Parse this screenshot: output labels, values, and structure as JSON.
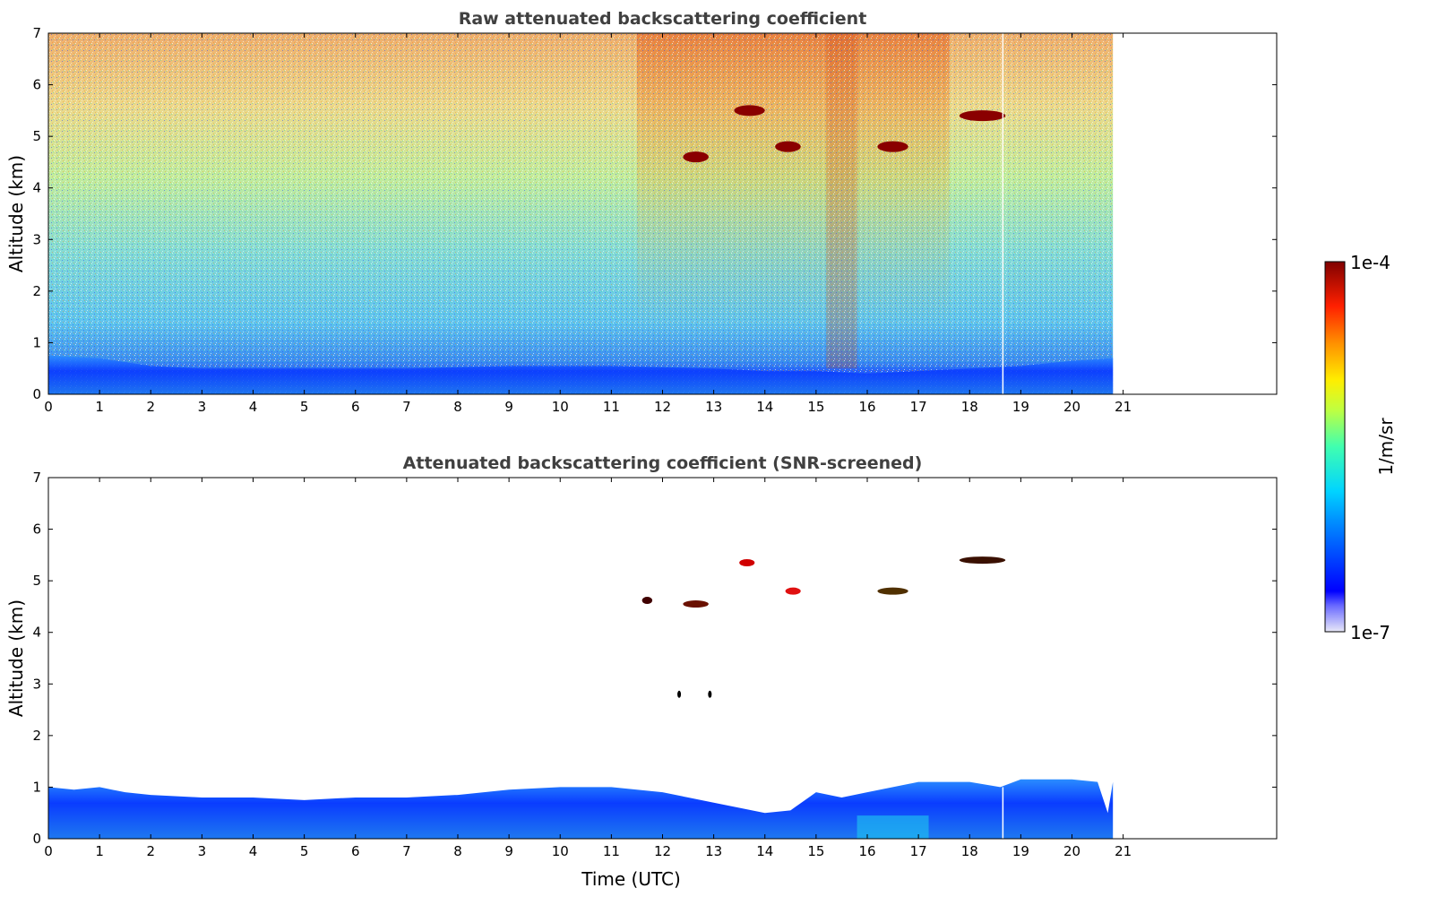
{
  "chart_data": [
    {
      "type": "heatmap",
      "title": "Raw attenuated backscattering coefficient",
      "xlabel": "",
      "ylabel": "Altitude (km)",
      "xlim": [
        0,
        24
      ],
      "ylim": [
        0,
        7
      ],
      "x_ticks": [
        0,
        1,
        2,
        3,
        4,
        5,
        6,
        7,
        8,
        9,
        10,
        11,
        12,
        13,
        14,
        15,
        16,
        17,
        18,
        19,
        20,
        21
      ],
      "y_ticks": [
        0,
        1,
        2,
        3,
        4,
        5,
        6,
        7
      ],
      "data_extent_x": [
        0,
        20.8
      ],
      "color_scale": "log",
      "value_range": [
        "1e-7",
        "1e-4"
      ],
      "cloud_layers": [
        {
          "x": [
            13.4,
            14.0
          ],
          "altitude": 5.5
        },
        {
          "x": [
            14.2,
            14.7
          ],
          "altitude": 4.8
        },
        {
          "x": [
            12.4,
            12.9
          ],
          "altitude": 4.6
        },
        {
          "x": [
            16.2,
            16.8
          ],
          "altitude": 4.8
        },
        {
          "x": [
            17.8,
            18.7
          ],
          "altitude": 5.4
        }
      ]
    },
    {
      "type": "heatmap",
      "title": "Attenuated backscattering coefficient (SNR-screened)",
      "xlabel": "Time (UTC)",
      "ylabel": "Altitude (km)",
      "xlim": [
        0,
        24
      ],
      "ylim": [
        0,
        7
      ],
      "x_ticks": [
        0,
        1,
        2,
        3,
        4,
        5,
        6,
        7,
        8,
        9,
        10,
        11,
        12,
        13,
        14,
        15,
        16,
        17,
        18,
        19,
        20,
        21
      ],
      "y_ticks": [
        0,
        1,
        2,
        3,
        4,
        5,
        6,
        7
      ],
      "data_extent_x": [
        0,
        20.8
      ],
      "color_scale": "log",
      "value_range": [
        "1e-7",
        "1e-4"
      ]
    }
  ],
  "colorbar": {
    "label": "1/m/sr",
    "max_label": "1e-4",
    "min_label": "1e-7",
    "colormap": "jet"
  }
}
